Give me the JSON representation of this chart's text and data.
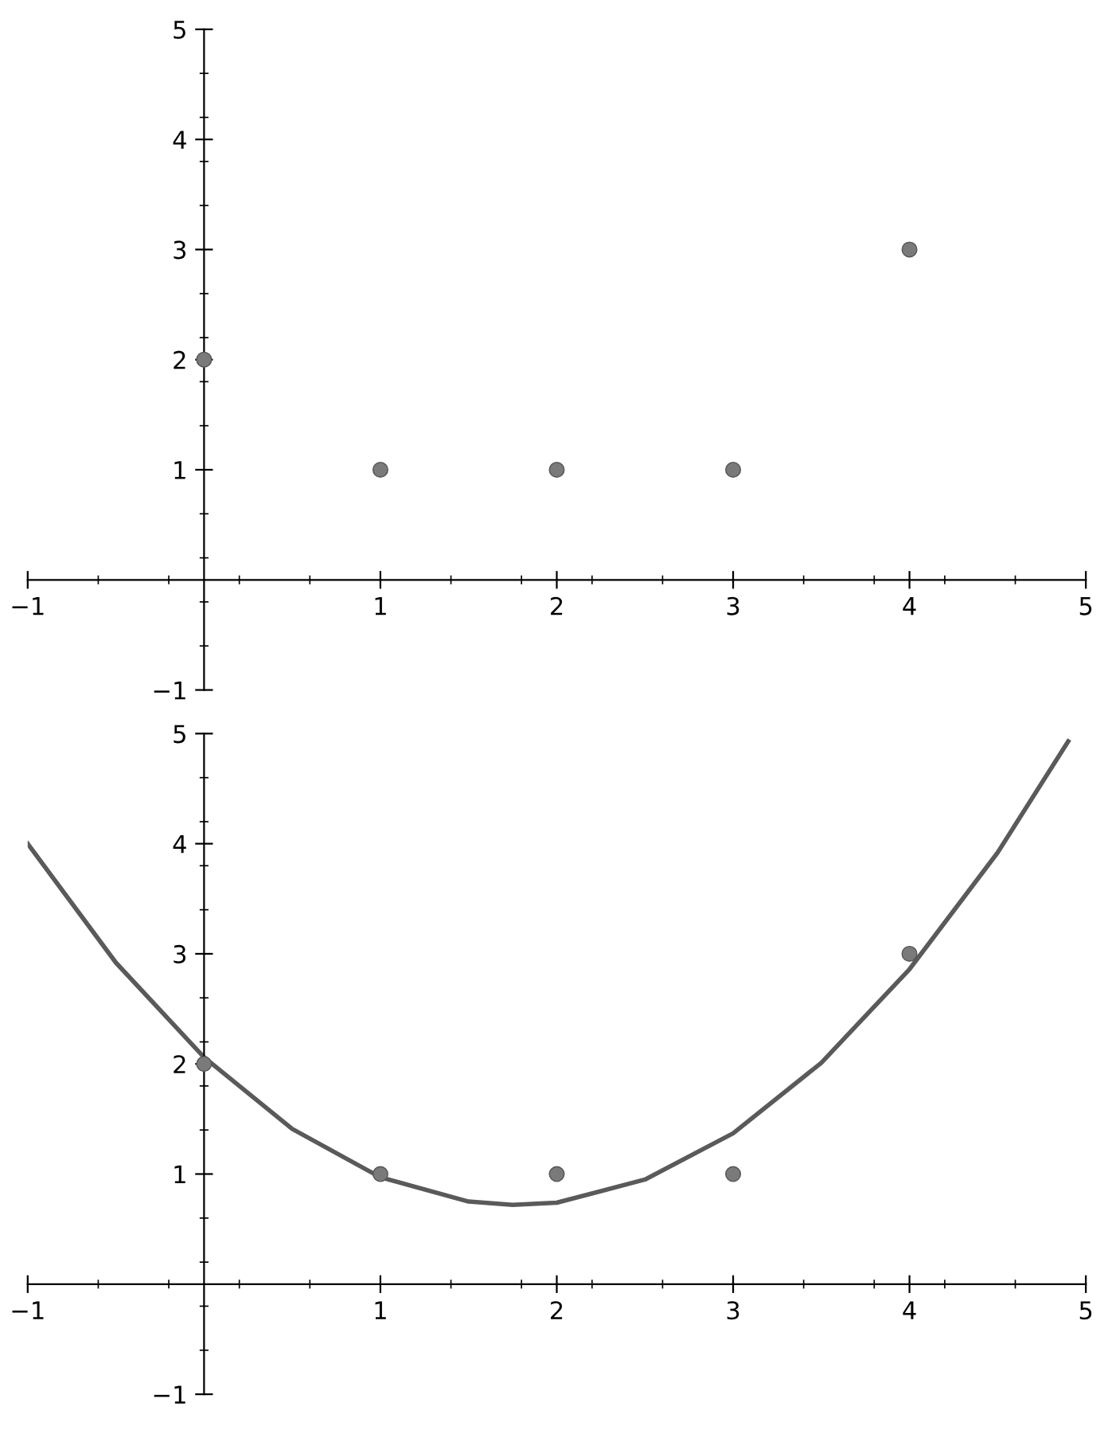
{
  "chart_data": [
    {
      "type": "scatter",
      "marker": "circle",
      "grid": false,
      "xlim": [
        -1,
        5
      ],
      "ylim": [
        -1,
        5
      ],
      "xticks": [
        {
          "value": -1,
          "label": "−1"
        },
        1,
        2,
        3,
        4,
        5
      ],
      "yticks": [
        {
          "value": -1,
          "label": "−1"
        },
        1,
        2,
        3,
        4,
        5
      ],
      "series": [
        {
          "color": "#7a7a7a",
          "x": [
            0,
            1,
            2,
            3,
            4
          ],
          "values": [
            2,
            1,
            1,
            1,
            3
          ]
        }
      ]
    },
    {
      "type": "scatter",
      "marker": "circle",
      "grid": false,
      "xlim": [
        -1,
        5
      ],
      "ylim": [
        -1,
        5
      ],
      "xticks": [
        {
          "value": -1,
          "label": "−1"
        },
        1,
        2,
        3,
        4,
        5
      ],
      "yticks": [
        {
          "value": -1,
          "label": "−1"
        },
        1,
        2,
        3,
        4,
        5
      ],
      "series": [
        {
          "type": "line",
          "marker": "none",
          "color": "#5a5a5a",
          "x": [
            -1,
            -0.5,
            0,
            0.5,
            1,
            1.5,
            1.75,
            2,
            2.5,
            3,
            3.5,
            4,
            4.5,
            4.9
          ],
          "values": [
            4.0,
            2.92,
            2.06,
            1.41,
            0.97,
            0.75,
            0.72,
            0.74,
            0.95,
            1.37,
            2.01,
            2.86,
            3.92,
            4.93
          ]
        },
        {
          "color": "#7a7a7a",
          "x": [
            0,
            1,
            2,
            3,
            4
          ],
          "values": [
            2,
            1,
            1,
            1,
            3
          ]
        }
      ]
    }
  ]
}
